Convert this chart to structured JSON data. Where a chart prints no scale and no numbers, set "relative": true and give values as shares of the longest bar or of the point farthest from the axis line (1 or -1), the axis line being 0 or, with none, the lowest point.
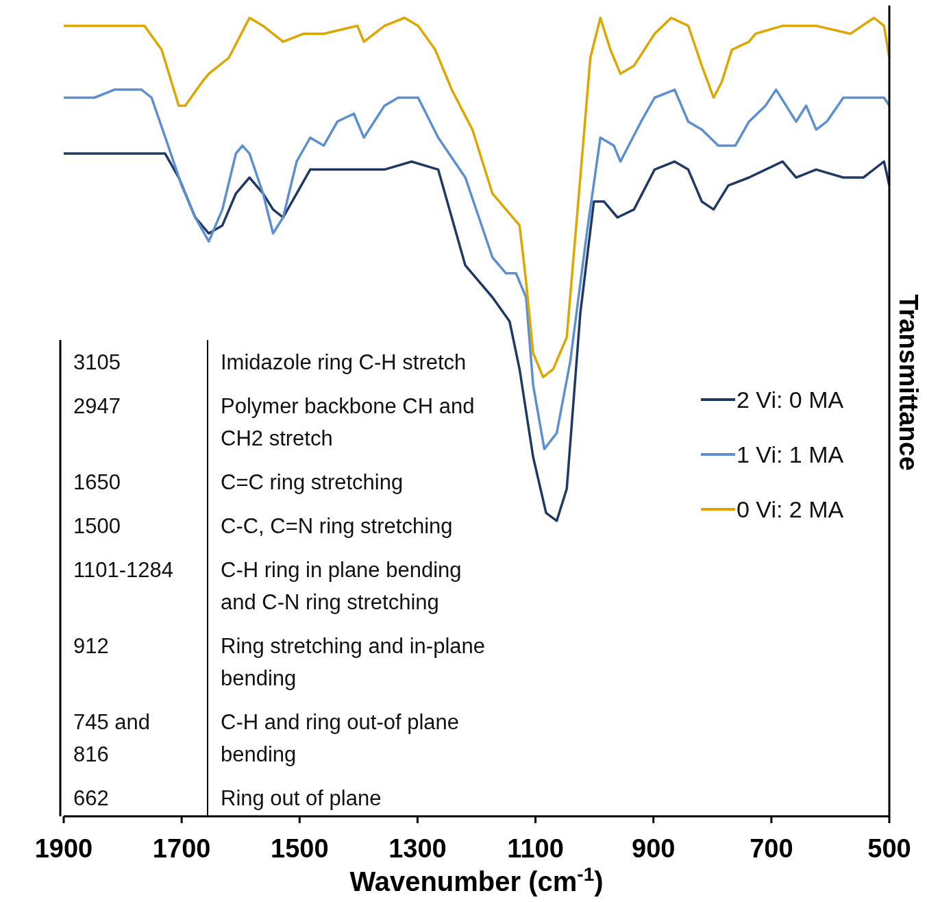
{
  "chart_data": {
    "type": "line",
    "relative": true,
    "xlabel": "Wavenumber (cm$^{-1}$)",
    "y2label": "Transmittance",
    "xlim": [
      1900,
      500
    ],
    "xticks": [
      1900,
      1700,
      1500,
      1300,
      1100,
      900,
      700,
      500
    ],
    "legend": "right",
    "grid": false,
    "line_style": "solid",
    "series": [
      {
        "name": "2 Vi: 0 MA",
        "color": "#1f3864",
        "x": [
          1900,
          1826,
          1768,
          1728,
          1705,
          1677,
          1654,
          1631,
          1608,
          1585,
          1562,
          1545,
          1528,
          1505,
          1482,
          1448,
          1402,
          1356,
          1310,
          1265,
          1242,
          1219,
          1173,
          1144,
          1127,
          1104,
          1082,
          1064,
          1047,
          1024,
          1001,
          984,
          961,
          933,
          898,
          864,
          841,
          818,
          798,
          773,
          738,
          681,
          658,
          624,
          578,
          544,
          509,
          500
        ],
        "values": [
          0.83,
          0.83,
          0.83,
          0.83,
          0.8,
          0.75,
          0.73,
          0.74,
          0.78,
          0.8,
          0.78,
          0.76,
          0.75,
          0.78,
          0.81,
          0.81,
          0.81,
          0.81,
          0.82,
          0.81,
          0.75,
          0.69,
          0.65,
          0.62,
          0.56,
          0.45,
          0.38,
          0.37,
          0.41,
          0.63,
          0.77,
          0.77,
          0.75,
          0.76,
          0.81,
          0.82,
          0.81,
          0.77,
          0.76,
          0.79,
          0.8,
          0.82,
          0.8,
          0.81,
          0.8,
          0.8,
          0.82,
          0.79
        ]
      },
      {
        "name": "1 Vi: 1 MA",
        "color": "#5b8fd0",
        "x": [
          1900,
          1848,
          1814,
          1768,
          1751,
          1723,
          1700,
          1677,
          1654,
          1631,
          1608,
          1597,
          1585,
          1562,
          1545,
          1528,
          1505,
          1482,
          1459,
          1436,
          1408,
          1391,
          1356,
          1333,
          1299,
          1265,
          1219,
          1173,
          1150,
          1133,
          1116,
          1104,
          1085,
          1064,
          1041,
          1013,
          990,
          967,
          956,
          921,
          898,
          864,
          841,
          818,
          790,
          761,
          738,
          710,
          692,
          675,
          658,
          641,
          624,
          606,
          578,
          532,
          509,
          500
        ],
        "values": [
          0.9,
          0.9,
          0.91,
          0.91,
          0.9,
          0.84,
          0.79,
          0.75,
          0.72,
          0.76,
          0.83,
          0.84,
          0.83,
          0.78,
          0.73,
          0.75,
          0.82,
          0.85,
          0.84,
          0.87,
          0.88,
          0.85,
          0.89,
          0.9,
          0.9,
          0.85,
          0.8,
          0.7,
          0.68,
          0.68,
          0.65,
          0.54,
          0.46,
          0.48,
          0.57,
          0.73,
          0.85,
          0.84,
          0.82,
          0.87,
          0.9,
          0.91,
          0.87,
          0.86,
          0.84,
          0.84,
          0.87,
          0.89,
          0.91,
          0.89,
          0.87,
          0.89,
          0.86,
          0.87,
          0.9,
          0.9,
          0.9,
          0.89
        ]
      },
      {
        "name": "0 Vi: 2 MA",
        "color": "#dda600",
        "x": [
          1900,
          1826,
          1763,
          1734,
          1705,
          1694,
          1665,
          1654,
          1620,
          1585,
          1562,
          1528,
          1494,
          1459,
          1402,
          1391,
          1356,
          1322,
          1299,
          1270,
          1242,
          1207,
          1173,
          1150,
          1127,
          1116,
          1104,
          1087,
          1070,
          1047,
          1024,
          1007,
          990,
          973,
          956,
          933,
          898,
          870,
          841,
          818,
          798,
          784,
          767,
          738,
          727,
          681,
          624,
          566,
          526,
          509,
          500
        ],
        "values": [
          0.99,
          0.99,
          0.99,
          0.96,
          0.89,
          0.89,
          0.92,
          0.93,
          0.95,
          1.0,
          0.99,
          0.97,
          0.98,
          0.98,
          0.99,
          0.97,
          0.99,
          1.0,
          0.99,
          0.96,
          0.91,
          0.86,
          0.78,
          0.76,
          0.74,
          0.67,
          0.58,
          0.55,
          0.56,
          0.6,
          0.8,
          0.95,
          1.0,
          0.96,
          0.93,
          0.94,
          0.98,
          1.0,
          0.99,
          0.94,
          0.9,
          0.92,
          0.96,
          0.97,
          0.98,
          0.99,
          0.99,
          0.98,
          1.0,
          0.99,
          0.95
        ]
      }
    ],
    "annotations": [
      "3105",
      "Imidazole ring C-H stretch",
      "2947",
      "Polymer backbone CH and\nCH2 stretch",
      "1650",
      "C=C ring stretching",
      "1500",
      "C-C, C=N ring stretching",
      "1101-1284",
      "C-H ring in plane bending\nand C-N ring stretching",
      "912",
      "Ring stretching and in-plane\nbending",
      "745 and\n816",
      "C-H and ring out-of plane\nbending",
      "662",
      "Ring out of plane"
    ]
  }
}
